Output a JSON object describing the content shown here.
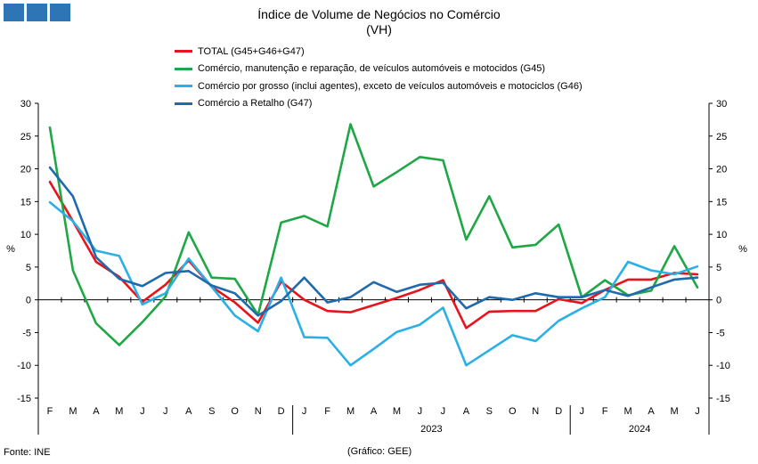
{
  "header": {
    "logo_colors": [
      "#2e75b6",
      "#2e75b6",
      "#2e75b6"
    ],
    "title_line1": "Índice de Volume de Negócios no Comércio",
    "title_line2": "(VH)"
  },
  "footer": {
    "source": "Fonte: INE",
    "credit": "(Gráfico: GEE)"
  },
  "chart_data": {
    "type": "line",
    "x": [
      "F",
      "M",
      "A",
      "M",
      "J",
      "J",
      "A",
      "S",
      "O",
      "N",
      "D",
      "J",
      "F",
      "M",
      "A",
      "M",
      "J",
      "J",
      "A",
      "S",
      "O",
      "N",
      "D",
      "J",
      "F",
      "M",
      "A",
      "M",
      "J"
    ],
    "year_labels": [
      {
        "label": "2023",
        "start": 11,
        "end": 22
      },
      {
        "label": "2024",
        "start": 23,
        "end": 28
      }
    ],
    "ylabel_left": "%",
    "ylabel_right": "%",
    "ylim": [
      -15,
      30
    ],
    "yticks": [
      -15,
      -10,
      -5,
      0,
      5,
      10,
      15,
      20,
      25,
      30
    ],
    "grid": false,
    "legend_position": "top",
    "series": [
      {
        "name": "TOTAL (G45+G46+G47)",
        "color": "#e8141c",
        "values": [
          18.0,
          12.0,
          5.8,
          3.5,
          -0.3,
          2.3,
          6.0,
          2.0,
          -0.4,
          -3.5,
          2.8,
          0.0,
          -1.7,
          -1.9,
          -0.8,
          0.3,
          1.5,
          3.0,
          -4.3,
          -1.8,
          -1.7,
          -1.7,
          0.1,
          -0.5,
          1.5,
          3.1,
          3.1,
          4.1,
          3.9
        ]
      },
      {
        "name": "Comércio, manutenção e reparação, de veículos automóveis e motocidos (G45)",
        "color": "#1fa746",
        "values": [
          26.3,
          4.5,
          -3.6,
          -6.9,
          -3.4,
          0.5,
          10.3,
          3.4,
          3.2,
          -2.3,
          11.8,
          12.8,
          11.2,
          26.8,
          17.3,
          19.5,
          21.8,
          21.3,
          9.2,
          15.8,
          8.0,
          8.4,
          11.5,
          0.4,
          3.0,
          0.7,
          1.4,
          8.2,
          1.9
        ]
      },
      {
        "name": "Comércio por grosso (inclui agentes), exceto de veículos automóveis e motociclos (G46)",
        "color": "#2ab0e6",
        "values": [
          14.9,
          12.0,
          7.5,
          6.7,
          -0.7,
          1.0,
          6.3,
          2.0,
          -2.4,
          -4.8,
          3.4,
          -5.7,
          -5.8,
          -10.0,
          -7.5,
          -4.9,
          -3.8,
          -1.2,
          -10.0,
          -7.7,
          -5.4,
          -6.3,
          -3.2,
          -1.3,
          0.4,
          5.8,
          4.5,
          3.9,
          5.1
        ]
      },
      {
        "name": "Comércio a Retalho (G47)",
        "color": "#1f6aac",
        "values": [
          20.2,
          15.8,
          6.5,
          3.2,
          2.1,
          4.1,
          4.4,
          2.2,
          1.0,
          -2.4,
          -0.2,
          3.4,
          -0.4,
          0.4,
          2.7,
          1.2,
          2.3,
          2.6,
          -1.3,
          0.4,
          0.0,
          1.0,
          0.4,
          0.4,
          1.5,
          0.6,
          1.9,
          3.1,
          3.4
        ]
      }
    ]
  }
}
